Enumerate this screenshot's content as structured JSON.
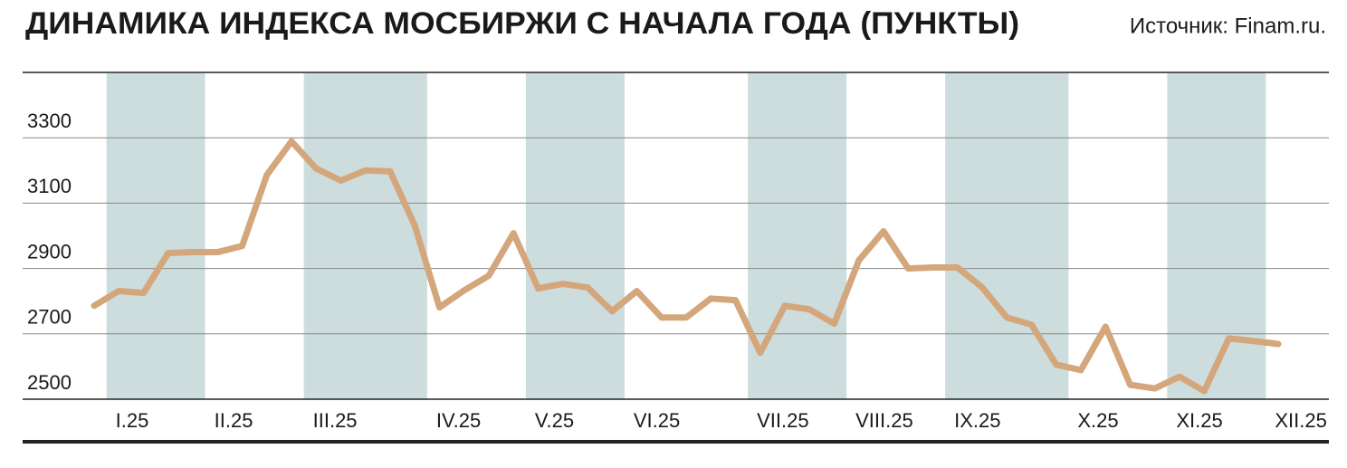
{
  "chart_data": {
    "type": "line",
    "title": "ДИНАМИКА ИНДЕКСА МОСБИРЖИ С НАЧАЛА ГОДА (ПУНКТЫ)",
    "source": "Источник: Finam.ru.",
    "categories": [
      null,
      "I.25",
      null,
      null,
      null,
      "II.25",
      null,
      null,
      null,
      "III.25",
      null,
      null,
      null,
      null,
      "IV.25",
      null,
      null,
      null,
      "V.25",
      null,
      null,
      null,
      "VI.25",
      null,
      null,
      null,
      null,
      "VII.25",
      null,
      null,
      null,
      "VIII.25",
      null,
      null,
      null,
      "IX.25",
      null,
      null,
      null,
      null,
      "X.25",
      null,
      null,
      null,
      "XI.25",
      null,
      null,
      null,
      "XII.25"
    ],
    "series": [
      {
        "color": "#d4a67c",
        "values": [
          2786,
          2831,
          2825,
          2947,
          2950,
          2950,
          2969,
          3186,
          3289,
          3206,
          3169,
          3200,
          3197,
          3031,
          2781,
          2833,
          2878,
          3008,
          2839,
          2853,
          2842,
          2769,
          2831,
          2750,
          2750,
          2808,
          2803,
          2642,
          2786,
          2775,
          2731,
          2925,
          3014,
          2900,
          2903,
          2903,
          2842,
          2750,
          2728,
          2606,
          2589,
          2722,
          2544,
          2533,
          2569,
          2525,
          2686,
          2678,
          2669
        ]
      }
    ],
    "ylim": [
      2500,
      3500
    ],
    "yticks": [
      2500,
      2700,
      2900,
      3100,
      3300
    ],
    "grid": true
  }
}
